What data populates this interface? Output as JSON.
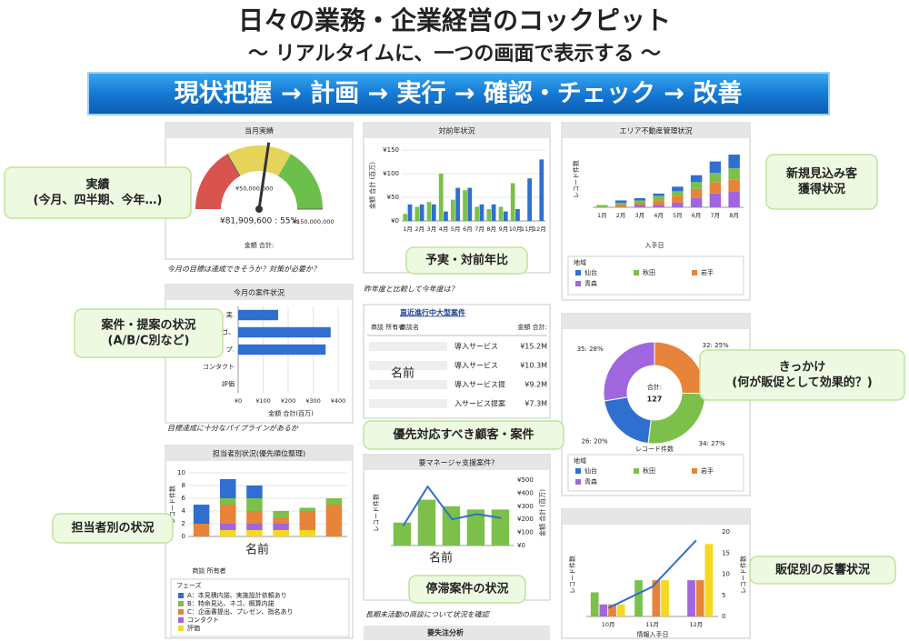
{
  "header": {
    "title": "日々の業務・企業経営のコックピット",
    "subtitle": "～ リアルタイムに、一つの画面で表示する ～",
    "banner": "現状把握 → 計画 → 実行 → 確認・チェック → 改善"
  },
  "callouts": [
    {
      "lines": [
        "実績",
        "(今月、四半期、今年…)"
      ]
    },
    {
      "lines": [
        "案件・提案の状況",
        "(A/B/C別など)"
      ]
    },
    {
      "lines": [
        "担当者別の状況"
      ]
    },
    {
      "lines": [
        "予実・対前年比"
      ]
    },
    {
      "lines": [
        "優先対応すべき顧客・案件"
      ]
    },
    {
      "lines": [
        "停滞案件の状況"
      ]
    },
    {
      "lines": [
        "新規見込み客",
        "獲得状況"
      ]
    },
    {
      "lines": [
        "きっかけ",
        "(何が販促として効果的？)"
      ]
    },
    {
      "lines": [
        "販促別の反響状況"
      ]
    }
  ],
  "name_overlays": [
    "名前",
    "名前",
    "名前"
  ],
  "table": {
    "title": "直近進行中大型案件",
    "columns": [
      "商談 所有者",
      "商談名",
      "金額 合計:"
    ],
    "rows": [
      [
        "導入サービス",
        "¥15.2M"
      ],
      [
        "導入サービス",
        "¥10.3M"
      ],
      [
        "導入サービス提",
        "¥9.2M"
      ],
      [
        "入サービス提案",
        "¥7.3M"
      ]
    ]
  },
  "footer_heading": "要失注分析",
  "chart_data": [
    {
      "type": "gauge",
      "title": "当月実績",
      "value": 81909600,
      "value_label": "¥81,909,600 : 55%",
      "ylim": [
        0,
        150000000
      ],
      "yticks": [
        {
          "value": 50000000,
          "label": "¥50,000,000"
        },
        {
          "value": 150000000,
          "label": "¥150,000,000"
        }
      ],
      "label": "金額 合計:",
      "caption": "今月の目標は達成できそうか？対策が必要か？"
    },
    {
      "type": "bar",
      "title": "対前年状況",
      "categories": [
        "1月",
        "2月",
        "3月",
        "4月",
        "5月",
        "6月",
        "7月",
        "8月",
        "9月",
        "10月",
        "11月",
        "12月"
      ],
      "series": [
        {
          "color": "#7cc04b",
          "values": [
            15,
            30,
            40,
            100,
            45,
            65,
            30,
            25,
            30,
            80,
            null,
            null
          ]
        },
        {
          "color": "#2f6fcf",
          "values": [
            35,
            35,
            35,
            20,
            70,
            70,
            35,
            35,
            20,
            25,
            90,
            130
          ]
        }
      ],
      "ylim": [
        0,
        150
      ],
      "yticks": [
        {
          "value": 0,
          "label": "¥0"
        },
        {
          "value": 50,
          "label": "¥50"
        },
        {
          "value": 100,
          "label": "¥100"
        },
        {
          "value": 150,
          "label": "¥150"
        }
      ],
      "ylabel": "金額 合計 (百万)",
      "caption": "昨年度と比較して今年度は？"
    },
    {
      "type": "stacked_bar",
      "title": "エリア不動産管理状況",
      "categories": [
        "1月",
        "2月",
        "3月",
        "4月",
        "5月",
        "6月",
        "7月",
        "8月"
      ],
      "series": [
        {
          "name": "仙台",
          "color": "#2f6fcf",
          "values": [
            0,
            1,
            1,
            1,
            2,
            3,
            5,
            6
          ]
        },
        {
          "name": "秋田",
          "color": "#7cc04b",
          "values": [
            1,
            1,
            1,
            2,
            2,
            3,
            4,
            5
          ]
        },
        {
          "name": "岩手",
          "color": "#e8833a",
          "values": [
            0,
            1,
            1,
            2,
            3,
            4,
            5,
            5
          ]
        },
        {
          "name": "青森",
          "color": "#a066e0",
          "values": [
            0,
            0,
            1,
            1,
            2,
            4,
            6,
            7
          ]
        }
      ],
      "ylim": [
        0,
        25
      ],
      "ylabel": "レコード件数",
      "xlabel": "入手日",
      "legend_title": "地域"
    },
    {
      "type": "hbar",
      "title": "今月の案件状況",
      "categories": [
        "見、実.",
        "ネゴ、",
        "出、プ.",
        "コンタクト",
        "評価"
      ],
      "values": [
        160,
        370,
        350,
        0,
        0
      ],
      "color": "#2f6fcf",
      "xlim": [
        0,
        400
      ],
      "xticks": [
        {
          "value": 0,
          "label": "¥0"
        },
        {
          "value": 100,
          "label": "¥100"
        },
        {
          "value": 200,
          "label": "¥200"
        },
        {
          "value": 300,
          "label": "¥300"
        },
        {
          "value": 400,
          "label": "¥400"
        }
      ],
      "xlabel": "金額 合計(百万)",
      "caption": "目標達成に十分なパイプラインがあるか"
    },
    {
      "type": "donut",
      "categories": [
        "仙台",
        "秋田",
        "岩手",
        "青森"
      ],
      "colors": [
        "#2f6fcf",
        "#7cc04b",
        "#e8833a",
        "#a066e0"
      ],
      "values": [
        26,
        34,
        32,
        35
      ],
      "value_labels": [
        "26: 20%",
        "34: 27%",
        "32: 25%",
        "35: 28%"
      ],
      "center_label": "合計:",
      "total": 127,
      "label": "レコード件数",
      "legend_title": "地域"
    },
    {
      "type": "stacked_bar",
      "title": "担当者別状況(優先順位整理)",
      "categories": [
        null,
        null,
        null,
        null,
        null,
        null
      ],
      "series": [
        {
          "name": "A：本見積内諾、実施設計依頼あり",
          "color": "#2f6fcf",
          "values": [
            3,
            3,
            2,
            0,
            0,
            0
          ]
        },
        {
          "name": "B：特命見込、ネゴ、概算内諾",
          "color": "#7cc04b",
          "values": [
            0,
            1,
            2,
            1,
            0.5,
            1
          ]
        },
        {
          "name": "C：企画書提出、プレゼン、指名あり",
          "color": "#e8833a",
          "values": [
            2,
            3,
            2,
            1,
            3,
            5
          ]
        },
        {
          "name": "コンタクト",
          "color": "#a066e0",
          "values": [
            0,
            1,
            1,
            1,
            0,
            0
          ]
        },
        {
          "name": "評価",
          "color": "#f5d820",
          "values": [
            0,
            1,
            1,
            1,
            1,
            0
          ]
        }
      ],
      "ylim": [
        0,
        10
      ],
      "yticks": [
        0,
        2,
        4,
        6,
        8,
        10
      ],
      "ylabel": "レコード件数",
      "xlabel": "商談 所有者",
      "legend_title": "フェーズ"
    },
    {
      "type": "combo",
      "title": "要マネージャ支援案件?",
      "categories": [
        null,
        null,
        null,
        null,
        null
      ],
      "series": [
        {
          "color": "#7cc04b",
          "values": [
            14,
            28,
            24,
            22,
            22
          ]
        },
        {
          "type": "line",
          "axis": "y2",
          "color": "#2f6fcf",
          "values": [
            150,
            450,
            200,
            240,
            210
          ]
        }
      ],
      "ylim": [
        0,
        40
      ],
      "y2lim": [
        0,
        500
      ],
      "y2ticks": [
        {
          "value": 0,
          "label": "¥0"
        },
        {
          "value": 100,
          "label": "¥100"
        },
        {
          "value": 200,
          "label": "¥200"
        },
        {
          "value": 300,
          "label": "¥300"
        },
        {
          "value": 400,
          "label": "¥400"
        },
        {
          "value": 500,
          "label": "¥500"
        }
      ],
      "ylabel": "レコード件数",
      "y2label": "金額 合計 (百万)",
      "caption": "長期未活動の商談について状況を確認"
    },
    {
      "type": "combo",
      "categories": [
        "10月",
        "11月",
        "12月"
      ],
      "series": [
        {
          "color": "#7cc04b",
          "values": [
            2,
            3,
            null
          ]
        },
        {
          "color": "#a066e0",
          "values": [
            1,
            null,
            3
          ]
        },
        {
          "color": "#e8833a",
          "values": [
            1,
            3,
            3
          ]
        },
        {
          "color": "#f5d820",
          "values": [
            1,
            3,
            6
          ]
        },
        {
          "type": "line",
          "axis": "y2",
          "color": "#2f6fcf",
          "values": [
            2,
            7,
            18
          ]
        }
      ],
      "ylim": [
        0,
        7
      ],
      "y2lim": [
        0,
        20
      ],
      "y2ticks": [
        0,
        5,
        10,
        15,
        20
      ],
      "ylabel": "レコード件数",
      "y2label": "レコード件数",
      "xlabel": "情報入手日"
    }
  ]
}
